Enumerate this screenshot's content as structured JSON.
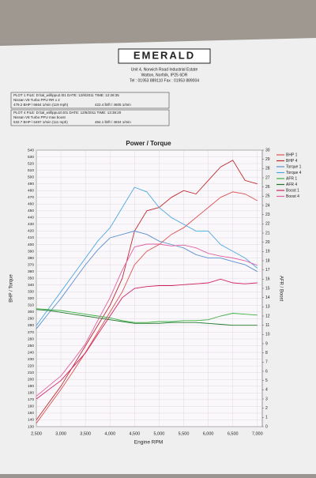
{
  "header": {
    "brand": "EMERALD",
    "address1": "Unit 4, Norwich Road Industrial Estate",
    "address2": "Watton, Norfolk, IP25 6DR",
    "phone": "Tel : 01953 889110   Fax : 01953 889004"
  },
  "plots": [
    {
      "file": "PLOT 1 FILE: D:\\tal_will\\ppu2.t01  DATE: 12/8/2011  TIME: 12:28:35",
      "vehicle": "Nissan V8 Turbo PPU RR x 2",
      "power": "479.2 BHP / 6664 1/min (119 mph)",
      "torque": "422.4 lb/ft / 4605 1/min"
    },
    {
      "file": "PLOT 4 FILE: D:\\tal_will\\ppu10.t01  DATE: 12/8/2011  TIME: 13:38:20",
      "vehicle": "Nissan V8 Turbo PPU max boost",
      "power": "532.7 BHP / 6487 1/min (111 mph)",
      "torque": "484.1 lb/ft / 4834 1/min"
    }
  ],
  "chart_data": {
    "type": "line",
    "title": "Power / Torque",
    "x_label": "Engine RPM",
    "y_label": "BHP / Torque",
    "y2_label": "AFR / Boost",
    "x": [
      2500,
      2750,
      3000,
      3250,
      3500,
      3750,
      4000,
      4250,
      4500,
      4750,
      5000,
      5250,
      5500,
      5750,
      6000,
      6250,
      6500,
      6750,
      7000
    ],
    "xlim": [
      2500,
      7100
    ],
    "xticks": [
      {
        "value": 2500,
        "label": "2,500"
      },
      {
        "value": 3000,
        "label": "3,000"
      },
      {
        "value": 3500,
        "label": "3,500"
      },
      {
        "value": 4000,
        "label": "4,000"
      },
      {
        "value": 4500,
        "label": "4,500"
      },
      {
        "value": 5000,
        "label": "5,000"
      },
      {
        "value": 5500,
        "label": "5,500"
      },
      {
        "value": 6000,
        "label": "6,000"
      },
      {
        "value": 6500,
        "label": "6,500"
      },
      {
        "value": 7000,
        "label": "7,000"
      }
    ],
    "ylim": [
      130,
      540
    ],
    "yticks": [
      130,
      140,
      150,
      160,
      170,
      180,
      190,
      200,
      210,
      220,
      230,
      240,
      250,
      260,
      270,
      280,
      290,
      300,
      310,
      320,
      330,
      340,
      350,
      360,
      370,
      380,
      390,
      400,
      410,
      420,
      430,
      440,
      450,
      460,
      470,
      480,
      490,
      500,
      510,
      520,
      530,
      540
    ],
    "y2lim": [
      0,
      30
    ],
    "y2ticks": [
      0,
      1,
      2,
      3,
      4,
      5,
      6,
      7,
      8,
      9,
      10,
      11,
      12,
      13,
      14,
      15,
      16,
      17,
      18,
      19,
      20,
      21,
      22,
      23,
      24,
      25,
      26,
      27,
      28,
      29,
      30
    ],
    "grid": true,
    "legend": "right",
    "series": [
      {
        "name": "BHP 1",
        "color": "#e05050",
        "values": [
          135,
          160,
          185,
          212,
          240,
          270,
          300,
          330,
          370,
          390,
          400,
          415,
          425,
          440,
          455,
          470,
          478,
          475,
          465
        ]
      },
      {
        "name": "BHP 4",
        "color": "#c0282c",
        "values": [
          140,
          165,
          190,
          220,
          250,
          280,
          310,
          350,
          420,
          450,
          455,
          470,
          480,
          475,
          495,
          515,
          525,
          495,
          490
        ]
      },
      {
        "name": "Torque 1",
        "color": "#5a8fd0",
        "values": [
          275,
          298,
          320,
          345,
          370,
          392,
          410,
          415,
          420,
          415,
          405,
          400,
          395,
          385,
          380,
          380,
          375,
          370,
          360
        ]
      },
      {
        "name": "Torque 4",
        "color": "#4aa8e0",
        "values": [
          280,
          305,
          330,
          355,
          380,
          405,
          425,
          455,
          485,
          478,
          455,
          440,
          430,
          420,
          420,
          400,
          390,
          380,
          365
        ]
      },
      {
        "name": "AFR 1",
        "color": "#3cb043",
        "axis": "y2",
        "values": [
          12.8,
          12.7,
          12.6,
          12.4,
          12.2,
          12.0,
          11.8,
          11.5,
          11.3,
          11.3,
          11.4,
          11.4,
          11.5,
          11.5,
          11.6,
          12.0,
          12.3,
          12.2,
          12.1
        ]
      },
      {
        "name": "AFR 4",
        "color": "#1f7a2a",
        "axis": "y2",
        "values": [
          12.7,
          12.6,
          12.4,
          12.2,
          12.0,
          11.8,
          11.6,
          11.4,
          11.2,
          11.2,
          11.2,
          11.3,
          11.3,
          11.3,
          11.2,
          11.1,
          11.0,
          11.0,
          11.0
        ]
      },
      {
        "name": "Boost 1",
        "color": "#d02060",
        "axis": "y2",
        "values": [
          3.0,
          4.0,
          5.0,
          6.5,
          8.0,
          10.0,
          12.0,
          14.0,
          15.0,
          15.2,
          15.3,
          15.3,
          15.4,
          15.5,
          15.6,
          16.0,
          15.6,
          15.5,
          15.6
        ]
      },
      {
        "name": "Boost 4",
        "color": "#e060a0",
        "axis": "y2",
        "values": [
          3.3,
          4.4,
          5.5,
          7.2,
          9.0,
          11.5,
          14.0,
          17.0,
          19.5,
          19.8,
          19.8,
          19.6,
          19.7,
          19.4,
          18.8,
          18.5,
          18.3,
          18.0,
          17.5
        ]
      }
    ]
  }
}
